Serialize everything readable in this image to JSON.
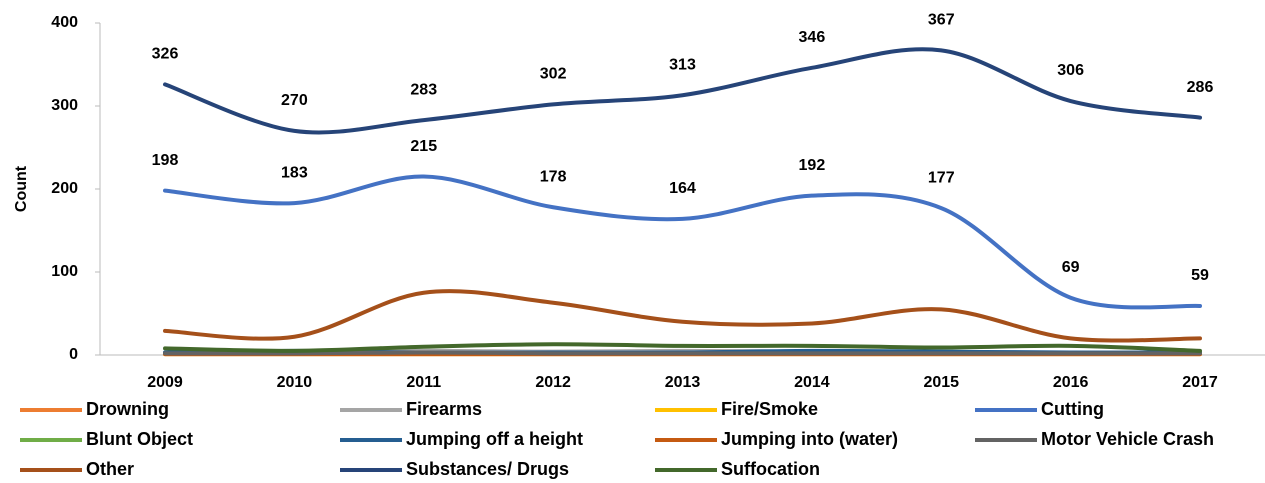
{
  "chart_data": {
    "type": "line",
    "y_label": "Count",
    "categories": [
      "2009",
      "2010",
      "2011",
      "2012",
      "2013",
      "2014",
      "2015",
      "2016",
      "2017"
    ],
    "ylim": [
      0,
      400
    ],
    "yticks": [
      0,
      100,
      200,
      300,
      400
    ],
    "grid": false,
    "smooth": true,
    "legend": "bottom",
    "series": [
      {
        "name": "Drowning",
        "color": "#ED7D31",
        "values": [
          1,
          1,
          1,
          1,
          1,
          1,
          1,
          1,
          1
        ]
      },
      {
        "name": "Firearms",
        "color": "#A5A5A5",
        "values": [
          3,
          3,
          5,
          4,
          5,
          4,
          3,
          3,
          3
        ]
      },
      {
        "name": "Fire/Smoke",
        "color": "#FFC000",
        "values": [
          1,
          1,
          1,
          1,
          1,
          1,
          1,
          1,
          1
        ]
      },
      {
        "name": "Cutting",
        "color": "#4472C4",
        "values": [
          198,
          183,
          215,
          178,
          164,
          192,
          177,
          69,
          59
        ],
        "data_labels": true
      },
      {
        "name": "Blunt Object",
        "color": "#70AD47",
        "values": [
          2,
          2,
          2,
          2,
          2,
          2,
          2,
          2,
          2
        ]
      },
      {
        "name": "Jumping off a height",
        "color": "#255E91",
        "values": [
          3,
          5,
          3,
          3,
          3,
          5,
          4,
          3,
          3
        ]
      },
      {
        "name": "Jumping into (water)",
        "color": "#C55A11",
        "values": [
          1,
          1,
          1,
          1,
          1,
          1,
          1,
          1,
          1
        ]
      },
      {
        "name": "Motor Vehicle Crash",
        "color": "#636363",
        "values": [
          2,
          2,
          3,
          2,
          2,
          2,
          2,
          2,
          2
        ]
      },
      {
        "name": "Other",
        "color": "#A5501A",
        "values": [
          29,
          22,
          75,
          63,
          40,
          38,
          55,
          20,
          20
        ]
      },
      {
        "name": "Substances/ Drugs",
        "color": "#264478",
        "values": [
          326,
          270,
          283,
          302,
          313,
          346,
          367,
          306,
          286
        ],
        "data_labels": true
      },
      {
        "name": "Suffocation",
        "color": "#43682B",
        "values": [
          8,
          5,
          10,
          13,
          11,
          11,
          9,
          11,
          5
        ]
      }
    ]
  }
}
